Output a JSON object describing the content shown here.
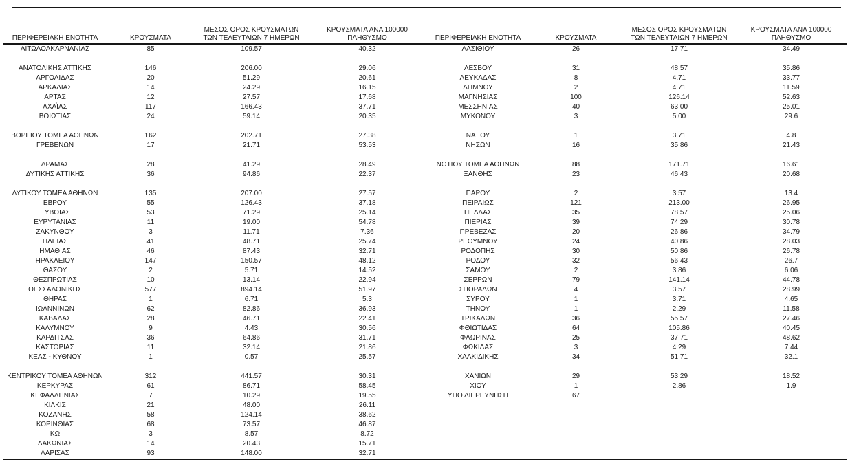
{
  "page": {
    "background_color": "#ffffff",
    "text_color": "#1c1c1c",
    "rule_color": "#161616"
  },
  "table": {
    "column_headers": [
      "ΠΕΡΙΦΕΡΕΙΑΚΗ ΕΝΟΤΗΤΑ",
      "ΚΡΟΥΣΜΑΤΑ",
      "ΜΕΣΟΣ ΟΡΟΣ ΚΡΟΥΣΜΑΤΩΝ\nΤΩΝ ΤΕΛΕΥΤΑΙΩΝ 7 ΗΜΕΡΩΝ",
      "ΚΡΟΥΣΜΑΤΑ ΑΝΑ 100000\nΠΛΗΘΥΣΜΟ"
    ],
    "left_rows": [
      [
        "ΑΙΤΩΛΟΑΚΑΡΝΑΝΙΑΣ",
        "85",
        "109.57",
        "40.32"
      ],
      null,
      [
        "ΑΝΑΤΟΛΙΚΗΣ ΑΤΤΙΚΗΣ",
        "146",
        "206.00",
        "29.06"
      ],
      [
        "ΑΡΓΟΛΙΔΑΣ",
        "20",
        "51.29",
        "20.61"
      ],
      [
        "ΑΡΚΑΔΙΑΣ",
        "14",
        "24.29",
        "16.15"
      ],
      [
        "ΑΡΤΑΣ",
        "12",
        "27.57",
        "17.68"
      ],
      [
        "ΑΧΑΪΑΣ",
        "117",
        "166.43",
        "37.71"
      ],
      [
        "ΒΟΙΩΤΙΑΣ",
        "24",
        "59.14",
        "20.35"
      ],
      null,
      [
        "ΒΟΡΕΙΟΥ ΤΟΜΕΑ ΑΘΗΝΩΝ",
        "162",
        "202.71",
        "27.38"
      ],
      [
        "ΓΡΕΒΕΝΩΝ",
        "17",
        "21.71",
        "53.53"
      ],
      null,
      [
        "ΔΡΑΜΑΣ",
        "28",
        "41.29",
        "28.49"
      ],
      [
        "ΔΥΤΙΚΗΣ ΑΤΤΙΚΗΣ",
        "36",
        "94.86",
        "22.37"
      ],
      null,
      [
        "ΔΥΤΙΚΟΥ ΤΟΜΕΑ ΑΘΗΝΩΝ",
        "135",
        "207.00",
        "27.57"
      ],
      [
        "ΕΒΡΟΥ",
        "55",
        "126.43",
        "37.18"
      ],
      [
        "ΕΥΒΟΙΑΣ",
        "53",
        "71.29",
        "25.14"
      ],
      [
        "ΕΥΡΥΤΑΝΙΑΣ",
        "11",
        "19.00",
        "54.78"
      ],
      [
        "ΖΑΚΥΝΘΟΥ",
        "3",
        "11.71",
        "7.36"
      ],
      [
        "ΗΛΕΙΑΣ",
        "41",
        "48.71",
        "25.74"
      ],
      [
        "ΗΜΑΘΙΑΣ",
        "46",
        "87.43",
        "32.71"
      ],
      [
        "ΗΡΑΚΛΕΙΟΥ",
        "147",
        "150.57",
        "48.12"
      ],
      [
        "ΘΑΣΟΥ",
        "2",
        "5.71",
        "14.52"
      ],
      [
        "ΘΕΣΠΡΩΤΙΑΣ",
        "10",
        "13.14",
        "22.94"
      ],
      [
        "ΘΕΣΣΑΛΟΝΙΚΗΣ",
        "577",
        "894.14",
        "51.97"
      ],
      [
        "ΘΗΡΑΣ",
        "1",
        "6.71",
        "5.3"
      ],
      [
        "ΙΩΑΝΝΙΝΩΝ",
        "62",
        "82.86",
        "36.93"
      ],
      [
        "ΚΑΒΑΛΑΣ",
        "28",
        "46.71",
        "22.41"
      ],
      [
        "ΚΑΛΥΜΝΟΥ",
        "9",
        "4.43",
        "30.56"
      ],
      [
        "ΚΑΡΔΙΤΣΑΣ",
        "36",
        "64.86",
        "31.71"
      ],
      [
        "ΚΑΣΤΟΡΙΑΣ",
        "11",
        "32.14",
        "21.86"
      ],
      [
        "ΚΕΑΣ - ΚΥΘΝΟΥ",
        "1",
        "0.57",
        "25.57"
      ],
      null,
      [
        "ΚΕΝΤΡΙΚΟΥ ΤΟΜΕΑ ΑΘΗΝΩΝ",
        "312",
        "441.57",
        "30.31"
      ],
      [
        "ΚΕΡΚΥΡΑΣ",
        "61",
        "86.71",
        "58.45"
      ],
      [
        "ΚΕΦΑΛΛΗΝΙΑΣ",
        "7",
        "10.29",
        "19.55"
      ],
      [
        "ΚΙΛΚΙΣ",
        "21",
        "48.00",
        "26.11"
      ],
      [
        "ΚΟΖΑΝΗΣ",
        "58",
        "124.14",
        "38.62"
      ],
      [
        "ΚΟΡΙΝΘΙΑΣ",
        "68",
        "73.57",
        "46.87"
      ],
      [
        "ΚΩ",
        "3",
        "8.57",
        "8.72"
      ],
      [
        "ΛΑΚΩΝΙΑΣ",
        "14",
        "20.43",
        "15.71"
      ],
      [
        "ΛΑΡΙΣΑΣ",
        "93",
        "148.00",
        "32.71"
      ]
    ],
    "right_rows": [
      [
        "ΛΑΣΙΘΙΟΥ",
        "26",
        "17.71",
        "34.49"
      ],
      null,
      [
        "ΛΕΣΒΟΥ",
        "31",
        "48.57",
        "35.86"
      ],
      [
        "ΛΕΥΚΑΔΑΣ",
        "8",
        "4.71",
        "33.77"
      ],
      [
        "ΛΗΜΝΟΥ",
        "2",
        "4.71",
        "11.59"
      ],
      [
        "ΜΑΓΝΗΣΙΑΣ",
        "100",
        "126.14",
        "52.63"
      ],
      [
        "ΜΕΣΣΗΝΙΑΣ",
        "40",
        "63.00",
        "25.01"
      ],
      [
        "ΜΥΚΟΝΟΥ",
        "3",
        "5.00",
        "29.6"
      ],
      null,
      [
        "ΝΑΞΟΥ",
        "1",
        "3.71",
        "4.8"
      ],
      [
        "ΝΗΣΩΝ",
        "16",
        "35.86",
        "21.43"
      ],
      null,
      [
        "ΝΟΤΙΟΥ ΤΟΜΕΑ ΑΘΗΝΩΝ",
        "88",
        "171.71",
        "16.61"
      ],
      [
        "ΞΑΝΘΗΣ",
        "23",
        "46.43",
        "20.68"
      ],
      null,
      [
        "ΠΑΡΟΥ",
        "2",
        "3.57",
        "13.4"
      ],
      [
        "ΠΕΙΡΑΙΩΣ",
        "121",
        "213.00",
        "26.95"
      ],
      [
        "ΠΕΛΛΑΣ",
        "35",
        "78.57",
        "25.06"
      ],
      [
        "ΠΙΕΡΙΑΣ",
        "39",
        "74.29",
        "30.78"
      ],
      [
        "ΠΡΕΒΕΖΑΣ",
        "20",
        "26.86",
        "34.79"
      ],
      [
        "ΡΕΘΥΜΝΟΥ",
        "24",
        "40.86",
        "28.03"
      ],
      [
        "ΡΟΔΟΠΗΣ",
        "30",
        "50.86",
        "26.78"
      ],
      [
        "ΡΟΔΟΥ",
        "32",
        "56.43",
        "26.7"
      ],
      [
        "ΣΑΜΟΥ",
        "2",
        "3.86",
        "6.06"
      ],
      [
        "ΣΕΡΡΩΝ",
        "79",
        "141.14",
        "44.78"
      ],
      [
        "ΣΠΟΡΑΔΩΝ",
        "4",
        "3.57",
        "28.99"
      ],
      [
        "ΣΥΡΟΥ",
        "1",
        "3.71",
        "4.65"
      ],
      [
        "ΤΗΝΟΥ",
        "1",
        "2.29",
        "11.58"
      ],
      [
        "ΤΡΙΚΑΛΩΝ",
        "36",
        "55.57",
        "27.46"
      ],
      [
        "ΦΘΙΩΤΙΔΑΣ",
        "64",
        "105.86",
        "40.45"
      ],
      [
        "ΦΛΩΡΙΝΑΣ",
        "25",
        "37.71",
        "48.62"
      ],
      [
        "ΦΩΚΙΔΑΣ",
        "3",
        "4.29",
        "7.44"
      ],
      [
        "ΧΑΛΚΙΔΙΚΗΣ",
        "34",
        "51.71",
        "32.1"
      ],
      null,
      [
        "ΧΑΝΙΩΝ",
        "29",
        "53.29",
        "18.52"
      ],
      [
        "ΧΙΟΥ",
        "1",
        "2.86",
        "1.9"
      ],
      [
        "ΥΠΟ ΔΙΕΡΕΥΝΗΣΗ",
        "67",
        "",
        ""
      ],
      null,
      null,
      null,
      null,
      null,
      null
    ]
  }
}
